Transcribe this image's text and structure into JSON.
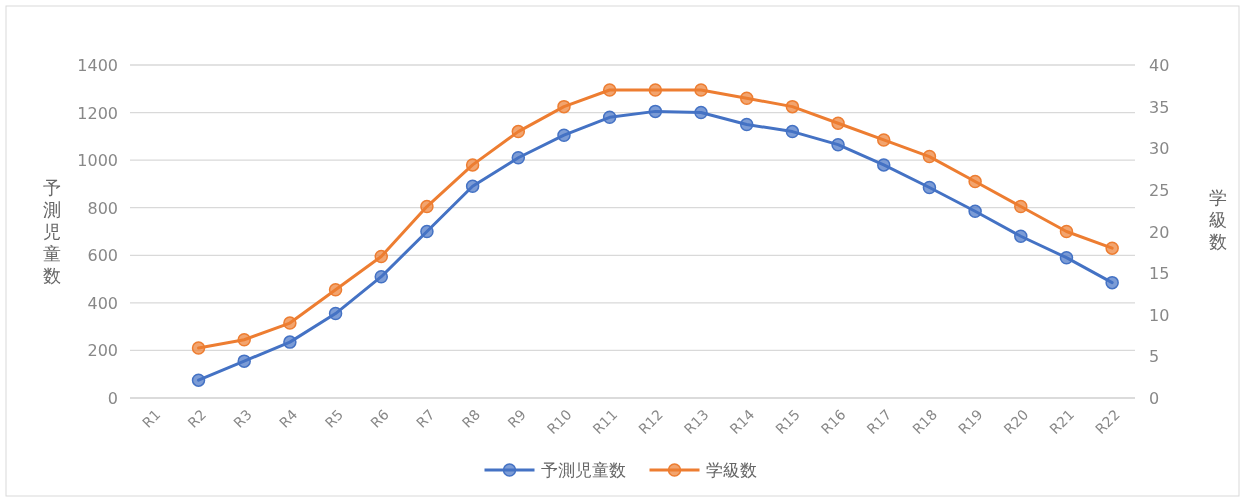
{
  "chart_data": {
    "type": "line",
    "ylabel": "予測児童数",
    "y2label": "学級数",
    "categories": [
      "R1",
      "R2",
      "R3",
      "R4",
      "R5",
      "R6",
      "R7",
      "R8",
      "R9",
      "R10",
      "R11",
      "R12",
      "R13",
      "R14",
      "R15",
      "R16",
      "R17",
      "R18",
      "R19",
      "R20",
      "R21",
      "R22"
    ],
    "series": [
      {
        "name": "予測児童数",
        "color": "#4472c4",
        "values": [
          null,
          75,
          155,
          235,
          355,
          510,
          700,
          890,
          1010,
          1105,
          1180,
          1205,
          1200,
          1150,
          1120,
          1065,
          980,
          885,
          785,
          680,
          590,
          485
        ]
      },
      {
        "name": "学級数",
        "color": "#ed7d31",
        "axis": "y2",
        "values": [
          null,
          6,
          7,
          9,
          13,
          17,
          23,
          28,
          32,
          35,
          37,
          37,
          37,
          36,
          35,
          33,
          31,
          29,
          26,
          23,
          20,
          18
        ]
      }
    ],
    "ylim": [
      0,
      1400
    ],
    "yticks": [
      0,
      200,
      400,
      600,
      800,
      1000,
      1200,
      1400
    ],
    "y2lim": [
      0,
      40
    ],
    "y2ticks": [
      0,
      5,
      10,
      15,
      20,
      25,
      30,
      35,
      40
    ],
    "grid": "y",
    "legend": "bottom",
    "marker": "circle",
    "line_style": "solid"
  }
}
